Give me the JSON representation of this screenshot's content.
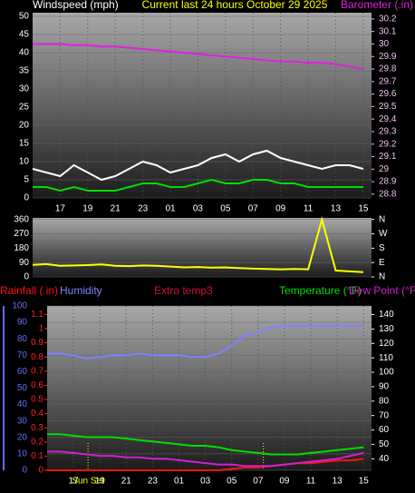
{
  "chart_data": [
    {
      "type": "line",
      "title": "Current last 24 hours October 29 2025",
      "y_label": "Windspeed (mph)",
      "x": [
        0,
        1,
        2,
        3,
        4,
        5,
        6,
        7,
        8,
        9,
        10,
        11,
        12,
        13,
        14,
        15,
        16,
        17,
        18,
        19,
        20,
        21,
        22,
        23,
        24
      ],
      "xlim": [
        0,
        24.6
      ],
      "xticks": [
        {
          "value": 2,
          "label": "17"
        },
        {
          "value": 4,
          "label": "19"
        },
        {
          "value": 6,
          "label": "21"
        },
        {
          "value": 8,
          "label": "23"
        },
        {
          "value": 10,
          "label": "01"
        },
        {
          "value": 12,
          "label": "03"
        },
        {
          "value": 14,
          "label": "05"
        },
        {
          "value": 16,
          "label": "07"
        },
        {
          "value": 18,
          "label": "09"
        },
        {
          "value": 20,
          "label": "11"
        },
        {
          "value": 22,
          "label": "13"
        },
        {
          "value": 24,
          "label": "15"
        }
      ],
      "ylim": [
        0,
        51
      ],
      "yticks": [
        0,
        5,
        10,
        15,
        20,
        25,
        30,
        35,
        40,
        45,
        50
      ],
      "ytick_color": "#ffffff",
      "y2lim": [
        28.77,
        30.25
      ],
      "y2ticks": [
        28.8,
        28.9,
        29,
        29.1,
        29.2,
        29.3,
        29.4,
        29.5,
        29.6,
        29.7,
        29.8,
        29.9,
        30,
        30.1,
        30.2
      ],
      "y2tick_color": "#f0c0f0",
      "series": [
        {
          "color": "#ffffff",
          "values": [
            8,
            7,
            6,
            9,
            7,
            5,
            6,
            8,
            10,
            9,
            7,
            8,
            9,
            11,
            12,
            10,
            12,
            13,
            11,
            10,
            9,
            8,
            9,
            9,
            8
          ]
        },
        {
          "color": "#00dd00",
          "values": [
            3,
            3,
            2,
            3,
            2,
            2,
            2,
            3,
            4,
            4,
            3,
            3,
            4,
            5,
            4,
            4,
            5,
            5,
            4,
            4,
            3,
            3,
            3,
            3,
            3
          ]
        },
        {
          "name": "Barometer (.in)",
          "color": "#e020e0",
          "axis": "y2",
          "values": [
            30.0,
            30.0,
            30.0,
            29.99,
            29.99,
            29.98,
            29.98,
            29.97,
            29.96,
            29.95,
            29.94,
            29.93,
            29.92,
            29.91,
            29.9,
            29.89,
            29.88,
            29.87,
            29.86,
            29.86,
            29.85,
            29.85,
            29.84,
            29.82,
            29.8
          ]
        }
      ]
    },
    {
      "type": "line",
      "x": [
        0,
        1,
        2,
        3,
        4,
        5,
        6,
        7,
        8,
        9,
        10,
        11,
        12,
        13,
        14,
        15,
        16,
        17,
        18,
        19,
        20,
        21,
        22,
        23,
        24
      ],
      "xlim": [
        0,
        24.6
      ],
      "ylim": [
        0,
        370
      ],
      "yticks": [
        0,
        90,
        180,
        270,
        360
      ],
      "ytick_color": "#ffffff",
      "y2lim": [
        0,
        370
      ],
      "y2ticks": [
        {
          "value": 0,
          "label": "N"
        },
        {
          "value": 90,
          "label": "E"
        },
        {
          "value": 180,
          "label": "S"
        },
        {
          "value": 270,
          "label": "W"
        },
        {
          "value": 360,
          "label": "N"
        }
      ],
      "y2tick_color": "#ffffff",
      "series": [
        {
          "color": "#ffff00",
          "values": [
            75,
            80,
            70,
            72,
            74,
            78,
            70,
            68,
            72,
            70,
            65,
            60,
            62,
            58,
            60,
            55,
            52,
            50,
            48,
            50,
            48,
            360,
            40,
            35,
            30
          ]
        }
      ]
    },
    {
      "type": "line",
      "x": [
        0,
        1,
        2,
        3,
        4,
        5,
        6,
        7,
        8,
        9,
        10,
        11,
        12,
        13,
        14,
        15,
        16,
        17,
        18,
        19,
        20,
        21,
        22,
        23,
        24
      ],
      "xlim": [
        0,
        24.6
      ],
      "xticks": [
        {
          "value": 2,
          "label": "17"
        },
        {
          "value": 4,
          "label": "19"
        },
        {
          "value": 6,
          "label": "21"
        },
        {
          "value": 8,
          "label": "23"
        },
        {
          "value": 10,
          "label": "01"
        },
        {
          "value": 12,
          "label": "03"
        },
        {
          "value": 14,
          "label": "05"
        },
        {
          "value": 16,
          "label": "07"
        },
        {
          "value": 18,
          "label": "09"
        },
        {
          "value": 20,
          "label": "11"
        },
        {
          "value": 22,
          "label": "13"
        },
        {
          "value": 24,
          "label": "15"
        }
      ],
      "ylim": [
        0,
        100
      ],
      "yticks": [
        0,
        10,
        20,
        30,
        40,
        50,
        60,
        70,
        80,
        90,
        100
      ],
      "ytick_color": "#6a6aff",
      "y2lim": [
        32,
        146
      ],
      "y2ticks": [
        40,
        50,
        60,
        70,
        80,
        90,
        100,
        110,
        120,
        130,
        140
      ],
      "y2tick_color": "#ffffff",
      "y3lim": [
        0,
        1.16
      ],
      "y3ticks": [
        0,
        0.1,
        0.2,
        0.3,
        0.4,
        0.5,
        0.6,
        0.7,
        0.8,
        0.9,
        1,
        1.1
      ],
      "y3tick_color": "#ff2020",
      "annotations": [
        {
          "x": 3.1,
          "label": "Sun Set"
        },
        {
          "x": 16.4
        }
      ],
      "series": [
        {
          "name": "Rainfall (.in)",
          "color": "#ff1010",
          "axis": "y3",
          "values": [
            0,
            0,
            0,
            0,
            0,
            0,
            0,
            0,
            0,
            0,
            0,
            0,
            0,
            0,
            0.01,
            0.02,
            0.02,
            0.03,
            0.04,
            0.05,
            0.05,
            0.06,
            0.07,
            0.07,
            0.08
          ]
        },
        {
          "name": "Humidity",
          "color": "#8080ff",
          "values": [
            71,
            71,
            70,
            68,
            69,
            70,
            70,
            71,
            70,
            70,
            70,
            69,
            69,
            71,
            76,
            82,
            84,
            87,
            88,
            88,
            88,
            88,
            88,
            88,
            88
          ]
        },
        {
          "name": "Extra temp3",
          "color": "#d01040",
          "axis": "y2",
          "values": [
            null,
            null,
            null,
            null,
            null,
            null,
            null,
            null,
            null,
            null,
            null,
            null,
            null,
            null,
            null,
            null,
            null,
            null,
            null,
            null,
            null,
            null,
            null,
            null,
            null
          ]
        },
        {
          "name": "Temperature (°F)",
          "color": "#00dd00",
          "axis": "y2",
          "values": [
            57,
            57,
            56,
            55,
            55,
            55,
            54,
            53,
            52,
            51,
            50,
            49,
            49,
            48,
            46,
            45,
            44,
            43,
            43,
            43,
            44,
            45,
            46,
            47,
            48
          ]
        },
        {
          "name": "Dew Point (°F)",
          "color": "#d020d0",
          "axis": "y2",
          "values": [
            45,
            45,
            44,
            43,
            42,
            42,
            41,
            41,
            40,
            40,
            39,
            38,
            37,
            36,
            36,
            35,
            35,
            35,
            36,
            37,
            38,
            39,
            40,
            42,
            44
          ]
        }
      ]
    }
  ]
}
